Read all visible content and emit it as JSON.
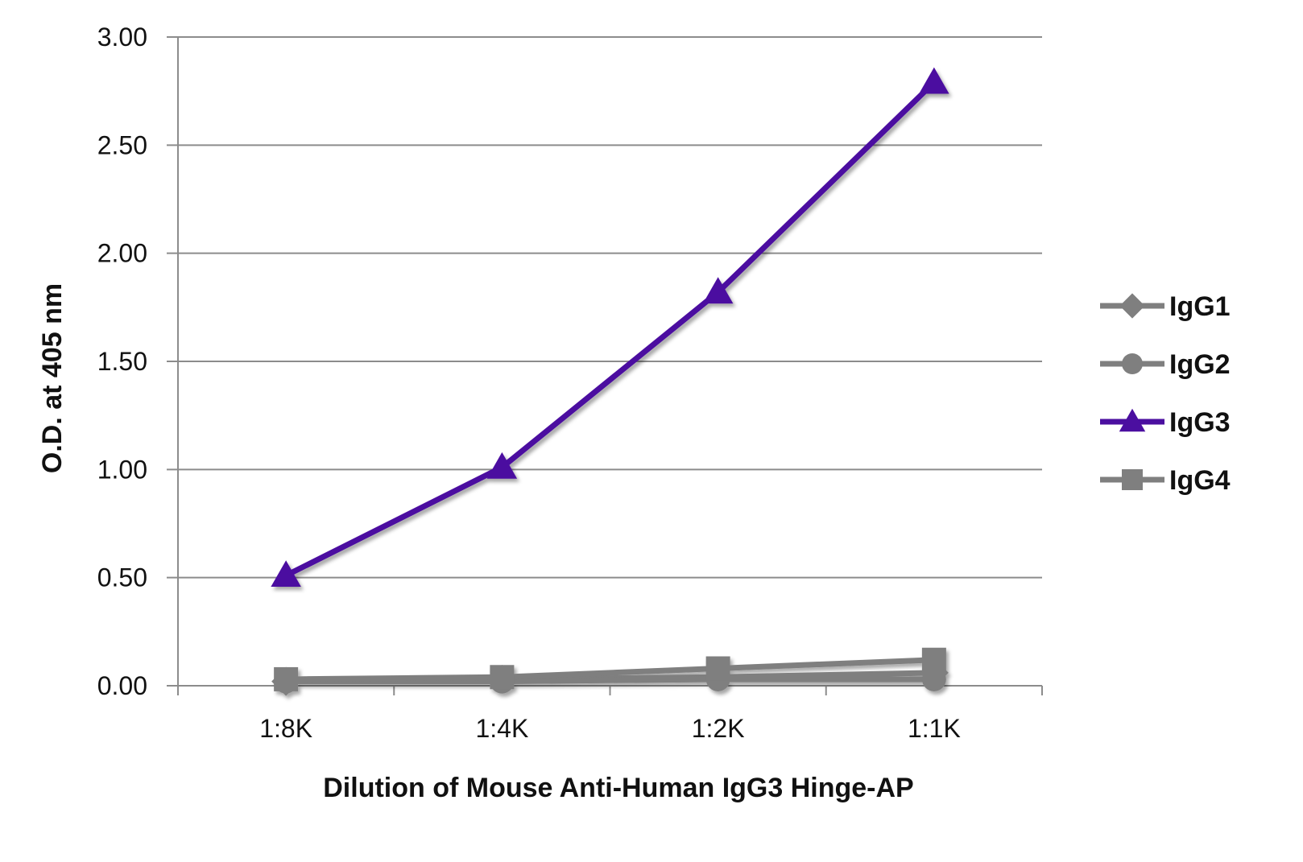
{
  "chart_data": {
    "type": "line",
    "title": "",
    "xlabel": "Dilution of Mouse Anti-Human IgG3 Hinge-AP",
    "ylabel": "O.D. at 405 nm",
    "categories": [
      "1:8K",
      "1:4K",
      "1:2K",
      "1:1K"
    ],
    "ylim": [
      0,
      3
    ],
    "yticks": [
      "0.00",
      "0.50",
      "1.00",
      "1.50",
      "2.00",
      "2.50",
      "3.00"
    ],
    "grid": true,
    "legend_position": "right",
    "series": [
      {
        "name": "IgG1",
        "marker": "diamond",
        "color": "#7f7f7f",
        "values": [
          0.02,
          0.03,
          0.04,
          0.06
        ]
      },
      {
        "name": "IgG2",
        "marker": "circle",
        "color": "#7f7f7f",
        "values": [
          0.02,
          0.02,
          0.03,
          0.03
        ]
      },
      {
        "name": "IgG3",
        "marker": "triangle",
        "color": "#4b0fa0",
        "values": [
          0.51,
          1.01,
          1.82,
          2.79
        ]
      },
      {
        "name": "IgG4",
        "marker": "square",
        "color": "#7f7f7f",
        "values": [
          0.03,
          0.04,
          0.08,
          0.12
        ]
      }
    ]
  }
}
